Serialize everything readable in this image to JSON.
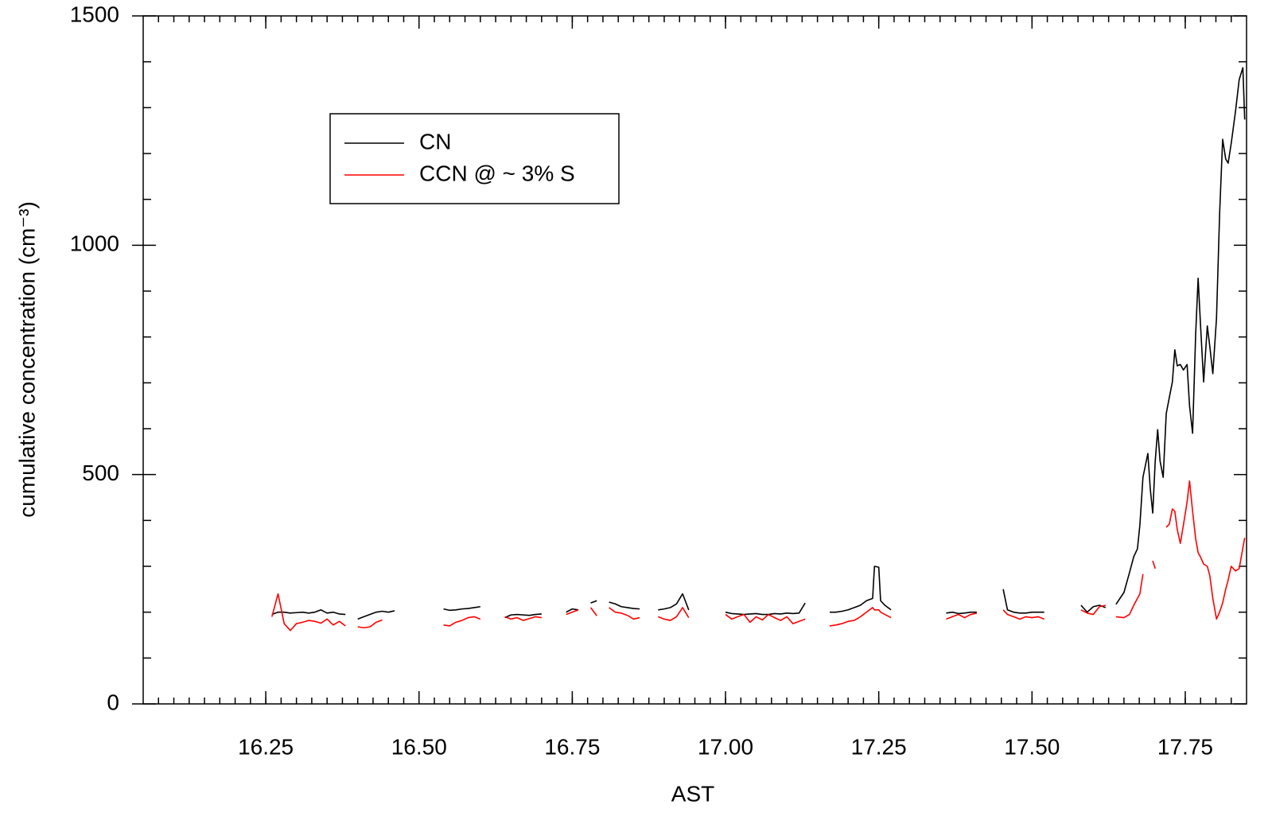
{
  "chart_data": {
    "type": "line",
    "xlabel": "AST",
    "ylabel": "cumulative concentration (cm⁻³)",
    "xlim": [
      16.05,
      17.85
    ],
    "ylim": [
      0,
      1500
    ],
    "xticks": [
      16.25,
      {
        "value": 16.5,
        "label": "16.50"
      },
      16.75,
      {
        "value": 17,
        "label": "17.00"
      },
      17.25,
      {
        "value": 17.5,
        "label": "17.50"
      },
      17.75
    ],
    "yticks": [
      0,
      500,
      1000,
      1500
    ],
    "xminorticks": [
      16.075,
      16.1,
      16.125,
      16.15,
      16.175,
      16.2,
      16.225,
      16.25,
      16.275,
      16.3,
      16.325,
      16.35,
      16.375,
      16.4,
      16.425,
      16.45,
      16.475,
      16.5,
      16.525,
      16.55,
      16.575,
      16.6,
      16.625,
      16.65,
      16.675,
      16.7,
      16.725,
      16.75,
      16.775,
      16.8,
      16.825,
      16.85,
      16.875,
      16.9,
      16.925,
      16.95,
      16.975,
      17,
      17.025,
      17.05,
      17.075,
      17.1,
      17.125,
      17.15,
      17.175,
      17.2,
      17.225,
      17.25,
      17.275,
      17.3,
      17.325,
      17.35,
      17.375,
      17.4,
      17.425,
      17.45,
      17.475,
      17.5,
      17.525,
      17.55,
      17.575,
      17.6,
      17.625,
      17.65,
      17.675,
      17.7,
      17.725,
      17.75,
      17.775,
      17.8,
      17.825
    ],
    "yminorticks": [
      100,
      200,
      300,
      400,
      600,
      700,
      800,
      900,
      1100,
      1200,
      1300,
      1400
    ],
    "x": [
      16.26,
      16.27,
      16.28,
      16.29,
      16.3,
      16.31,
      16.32,
      16.33,
      16.34,
      16.35,
      16.36,
      16.37,
      16.38,
      16.39,
      16.4,
      16.41,
      16.42,
      16.43,
      16.44,
      16.45,
      16.46,
      16.5,
      16.54,
      16.55,
      16.56,
      16.57,
      16.58,
      16.59,
      16.6,
      16.62,
      16.64,
      16.65,
      16.66,
      16.67,
      16.68,
      16.69,
      16.7,
      16.72,
      16.74,
      16.75,
      16.76,
      16.77,
      16.78,
      16.79,
      16.8,
      16.81,
      16.82,
      16.83,
      16.84,
      16.85,
      16.86,
      16.875,
      16.89,
      16.9,
      16.91,
      16.92,
      16.93,
      16.94,
      16.97,
      17.0,
      17.01,
      17.02,
      17.03,
      17.04,
      17.05,
      17.06,
      17.07,
      17.08,
      17.09,
      17.1,
      17.11,
      17.12,
      17.13,
      17.15,
      17.17,
      17.18,
      17.19,
      17.2,
      17.21,
      17.22,
      17.23,
      17.24,
      17.243,
      17.25,
      17.253,
      17.26,
      17.27,
      17.32,
      17.36,
      17.37,
      17.38,
      17.39,
      17.4,
      17.41,
      17.43,
      17.453,
      17.46,
      17.47,
      17.48,
      17.49,
      17.5,
      17.51,
      17.52,
      17.55,
      17.58,
      17.59,
      17.6,
      17.61,
      17.62,
      17.63,
      17.637,
      17.65,
      17.659,
      17.666,
      17.672,
      17.676,
      17.681,
      17.685,
      17.689,
      17.693,
      17.697,
      17.701,
      17.705,
      17.709,
      17.714,
      17.719,
      17.724,
      17.729,
      17.733,
      17.737,
      17.742,
      17.747,
      17.753,
      17.757,
      17.762,
      17.767,
      17.771,
      17.775,
      17.78,
      17.786,
      17.79,
      17.795,
      17.801,
      17.806,
      17.811,
      17.816,
      17.82,
      17.825,
      17.832,
      17.838,
      17.844,
      17.847
    ],
    "series": [
      {
        "name": "CN",
        "color": "#000000",
        "values": [
          195,
          200,
          200,
          198,
          199,
          200,
          198,
          200,
          205,
          198,
          200,
          196,
          195,
          null,
          185,
          190,
          195,
          200,
          202,
          200,
          203,
          null,
          207,
          204,
          205,
          207,
          208,
          210,
          212,
          null,
          188,
          194,
          195,
          194,
          193,
          195,
          196,
          null,
          200,
          207,
          205,
          null,
          220,
          225,
          null,
          222,
          218,
          212,
          210,
          208,
          207,
          null,
          205,
          207,
          210,
          218,
          240,
          205,
          null,
          200,
          197,
          196,
          195,
          196,
          197,
          195,
          195,
          197,
          196,
          198,
          197,
          198,
          220,
          null,
          200,
          200,
          202,
          205,
          210,
          215,
          225,
          230,
          300,
          298,
          225,
          215,
          205,
          null,
          198,
          200,
          197,
          198,
          200,
          200,
          null,
          250,
          205,
          200,
          198,
          198,
          200,
          200,
          200,
          null,
          215,
          200,
          212,
          215,
          210,
          null,
          217,
          243,
          286,
          321,
          338,
          390,
          494,
          520,
          546,
          468,
          416,
          529,
          598,
          529,
          494,
          633,
          668,
          702,
          772,
          737,
          740,
          728,
          740,
          650,
          590,
          806,
          928,
          824,
          702,
          824,
          780,
          720,
          841,
          1066,
          1231,
          1188,
          1179,
          1222,
          1292,
          1361,
          1387,
          1274
        ]
      },
      {
        "name": "CCN @ ~ 3% S",
        "color": "#ff0000",
        "values": [
          190,
          240,
          175,
          160,
          175,
          178,
          182,
          180,
          176,
          185,
          172,
          180,
          170,
          null,
          168,
          166,
          168,
          178,
          183,
          null,
          null,
          null,
          172,
          170,
          178,
          182,
          188,
          190,
          185,
          null,
          190,
          185,
          188,
          182,
          186,
          190,
          188,
          null,
          195,
          200,
          205,
          null,
          210,
          192,
          null,
          210,
          200,
          198,
          193,
          185,
          188,
          null,
          190,
          185,
          182,
          190,
          210,
          188,
          null,
          195,
          185,
          190,
          195,
          178,
          190,
          183,
          195,
          188,
          182,
          190,
          175,
          180,
          185,
          null,
          170,
          172,
          175,
          180,
          182,
          190,
          200,
          210,
          205,
          205,
          200,
          195,
          188,
          null,
          185,
          190,
          195,
          188,
          195,
          198,
          null,
          205,
          195,
          190,
          185,
          190,
          188,
          190,
          185,
          null,
          205,
          198,
          195,
          212,
          215,
          null,
          190,
          188,
          195,
          215,
          230,
          240,
          283,
          null,
          null,
          null,
          312,
          295,
          null,
          null,
          null,
          385,
          392,
          425,
          420,
          380,
          350,
          390,
          440,
          486,
          420,
          360,
          330,
          320,
          305,
          300,
          280,
          230,
          185,
          200,
          220,
          250,
          270,
          300,
          290,
          295,
          340,
          362
        ]
      }
    ]
  }
}
